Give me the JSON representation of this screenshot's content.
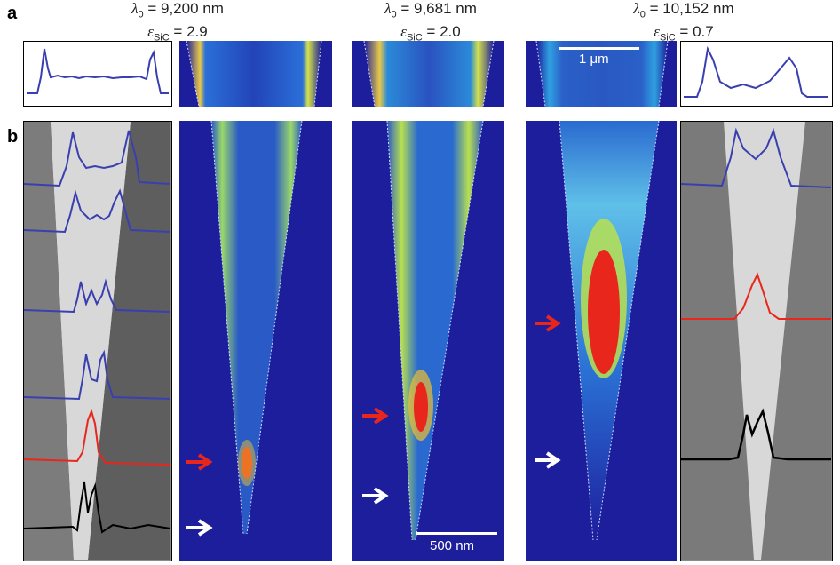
{
  "panel_labels": {
    "a": "a",
    "b": "b"
  },
  "columns": [
    {
      "lambda_label": "λ",
      "lambda_sub": "0",
      "lambda_value": " = 9,200 nm",
      "eps_label": "ε",
      "eps_sub": "SiC",
      "eps_value": " = 2.9"
    },
    {
      "lambda_label": "λ",
      "lambda_sub": "0",
      "lambda_value": " = 9,681 nm",
      "eps_label": "ε",
      "eps_sub": "SiC",
      "eps_value": " = 2.0"
    },
    {
      "lambda_label": "λ",
      "lambda_sub": "0",
      "lambda_value": " = 10,152 nm",
      "eps_label": "ε",
      "eps_sub": "SiC",
      "eps_value": " = 0.7"
    }
  ],
  "scalebars": {
    "top": "1 μm",
    "bottom": "500 nm"
  },
  "colors": {
    "profile_blue": "#3a3fb0",
    "profile_red": "#e8261c",
    "profile_black": "#000000",
    "arrow_red": "#e8261c",
    "arrow_white": "#ffffff",
    "field_bg": "#1d1e9c"
  }
}
